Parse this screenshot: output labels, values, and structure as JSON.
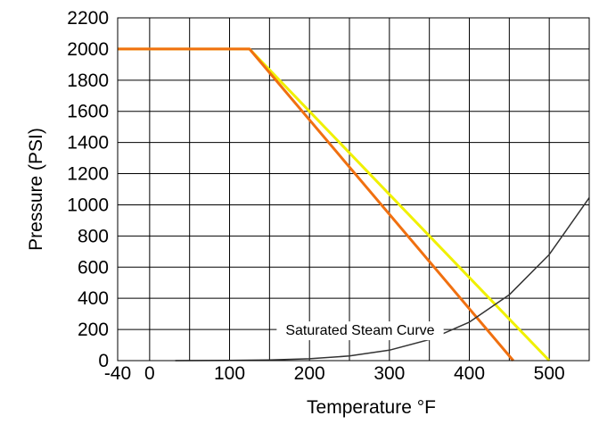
{
  "chart_data": {
    "type": "line",
    "title": "",
    "xlabel": "Temperature °F",
    "ylabel": "Pressure (PSI)",
    "xlim": [
      -40,
      550
    ],
    "ylim": [
      0,
      2200
    ],
    "x_ticks": [
      -40,
      0,
      100,
      200,
      300,
      400,
      500
    ],
    "x_tick_labels": [
      "-40",
      "0",
      "100",
      "200",
      "300",
      "400",
      "500"
    ],
    "x_gridlines": [
      -40,
      0,
      50,
      100,
      150,
      200,
      250,
      300,
      350,
      400,
      450,
      500,
      550
    ],
    "y_ticks": [
      0,
      200,
      400,
      600,
      800,
      1000,
      1200,
      1400,
      1600,
      1800,
      2000,
      2200
    ],
    "y_tick_labels": [
      "0",
      "200",
      "400",
      "600",
      "800",
      "1000",
      "1200",
      "1400",
      "1600",
      "1800",
      "2000",
      "2200"
    ],
    "grid": true,
    "series": [
      {
        "color": "#f0f000",
        "points": [
          [
            -40,
            2000
          ],
          [
            125,
            2000
          ],
          [
            500,
            0
          ]
        ]
      },
      {
        "color": "#f07010",
        "points": [
          [
            -40,
            2000
          ],
          [
            125,
            2000
          ],
          [
            455,
            0
          ]
        ]
      },
      {
        "name": "Saturated Steam Curve",
        "color": "#333333",
        "points": [
          [
            32,
            0
          ],
          [
            100,
            1
          ],
          [
            150,
            4
          ],
          [
            200,
            12
          ],
          [
            250,
            30
          ],
          [
            300,
            67
          ],
          [
            350,
            135
          ],
          [
            400,
            247
          ],
          [
            450,
            422
          ],
          [
            500,
            681
          ],
          [
            550,
            1045
          ]
        ]
      }
    ],
    "annotation": {
      "text": "Saturated Steam Curve",
      "x": 150,
      "y": 200
    }
  }
}
